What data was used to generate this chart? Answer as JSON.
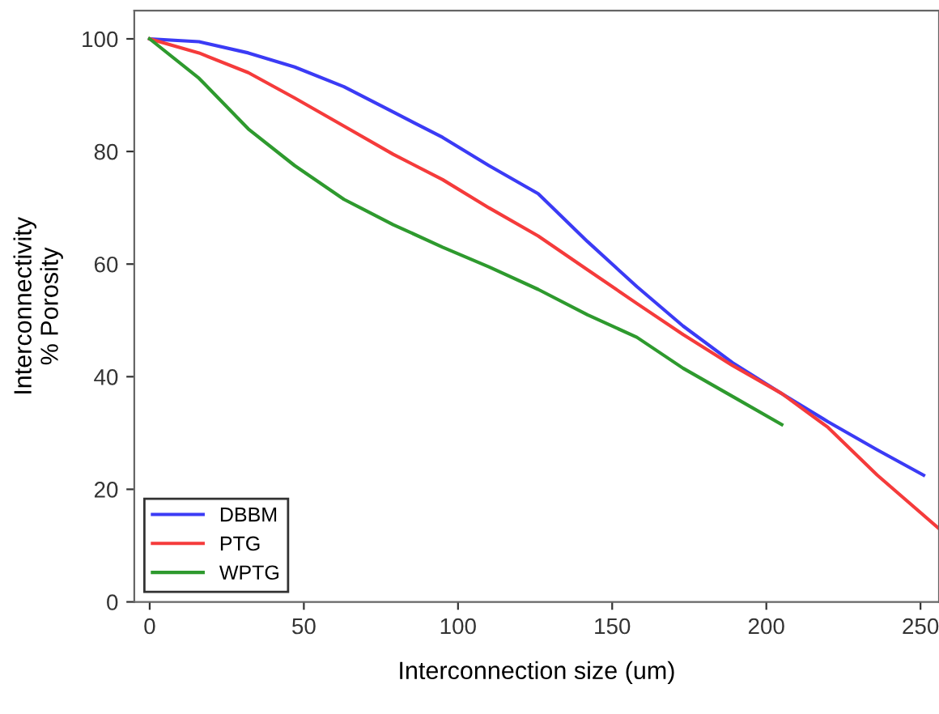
{
  "chart_data": {
    "type": "line",
    "xlabel": "Interconnection size (um)",
    "ylabel": "Interconnectivity\n% Porosity",
    "xlim": [
      -5,
      256
    ],
    "ylim": [
      0,
      105
    ],
    "xticks": [
      0,
      50,
      100,
      150,
      200,
      250
    ],
    "yticks": [
      0,
      20,
      40,
      60,
      80,
      100
    ],
    "grid": false,
    "legend": "bottom left",
    "marker": "none",
    "line_style": "solid",
    "series": [
      {
        "name": "DBBM",
        "color": "#3b3bf5",
        "x": [
          0,
          16,
          32,
          47,
          63,
          79,
          95,
          110,
          126,
          142,
          158,
          173,
          189,
          205,
          220,
          236,
          251
        ],
        "values": [
          100,
          99.5,
          97.5,
          95,
          91.5,
          87,
          82.5,
          77.5,
          72.5,
          64,
          56,
          49,
          42.5,
          37,
          32,
          27,
          22.5
        ]
      },
      {
        "name": "PTG",
        "color": "#f53b3b",
        "x": [
          0,
          16,
          32,
          47,
          63,
          79,
          95,
          110,
          126,
          142,
          158,
          173,
          189,
          205,
          220,
          236,
          256
        ],
        "values": [
          100,
          97.5,
          94,
          89.5,
          84.5,
          79.5,
          75,
          70,
          65,
          59,
          53,
          47.5,
          42,
          37,
          31,
          22.5,
          13
        ]
      },
      {
        "name": "WPTG",
        "color": "#2e9a2e",
        "x": [
          0,
          16,
          32,
          47,
          63,
          79,
          95,
          110,
          126,
          142,
          158,
          173,
          189,
          205
        ],
        "values": [
          100,
          93,
          84,
          77.5,
          71.5,
          67,
          63,
          59.5,
          55.5,
          51,
          47,
          41.5,
          36.5,
          31.5
        ]
      }
    ]
  }
}
